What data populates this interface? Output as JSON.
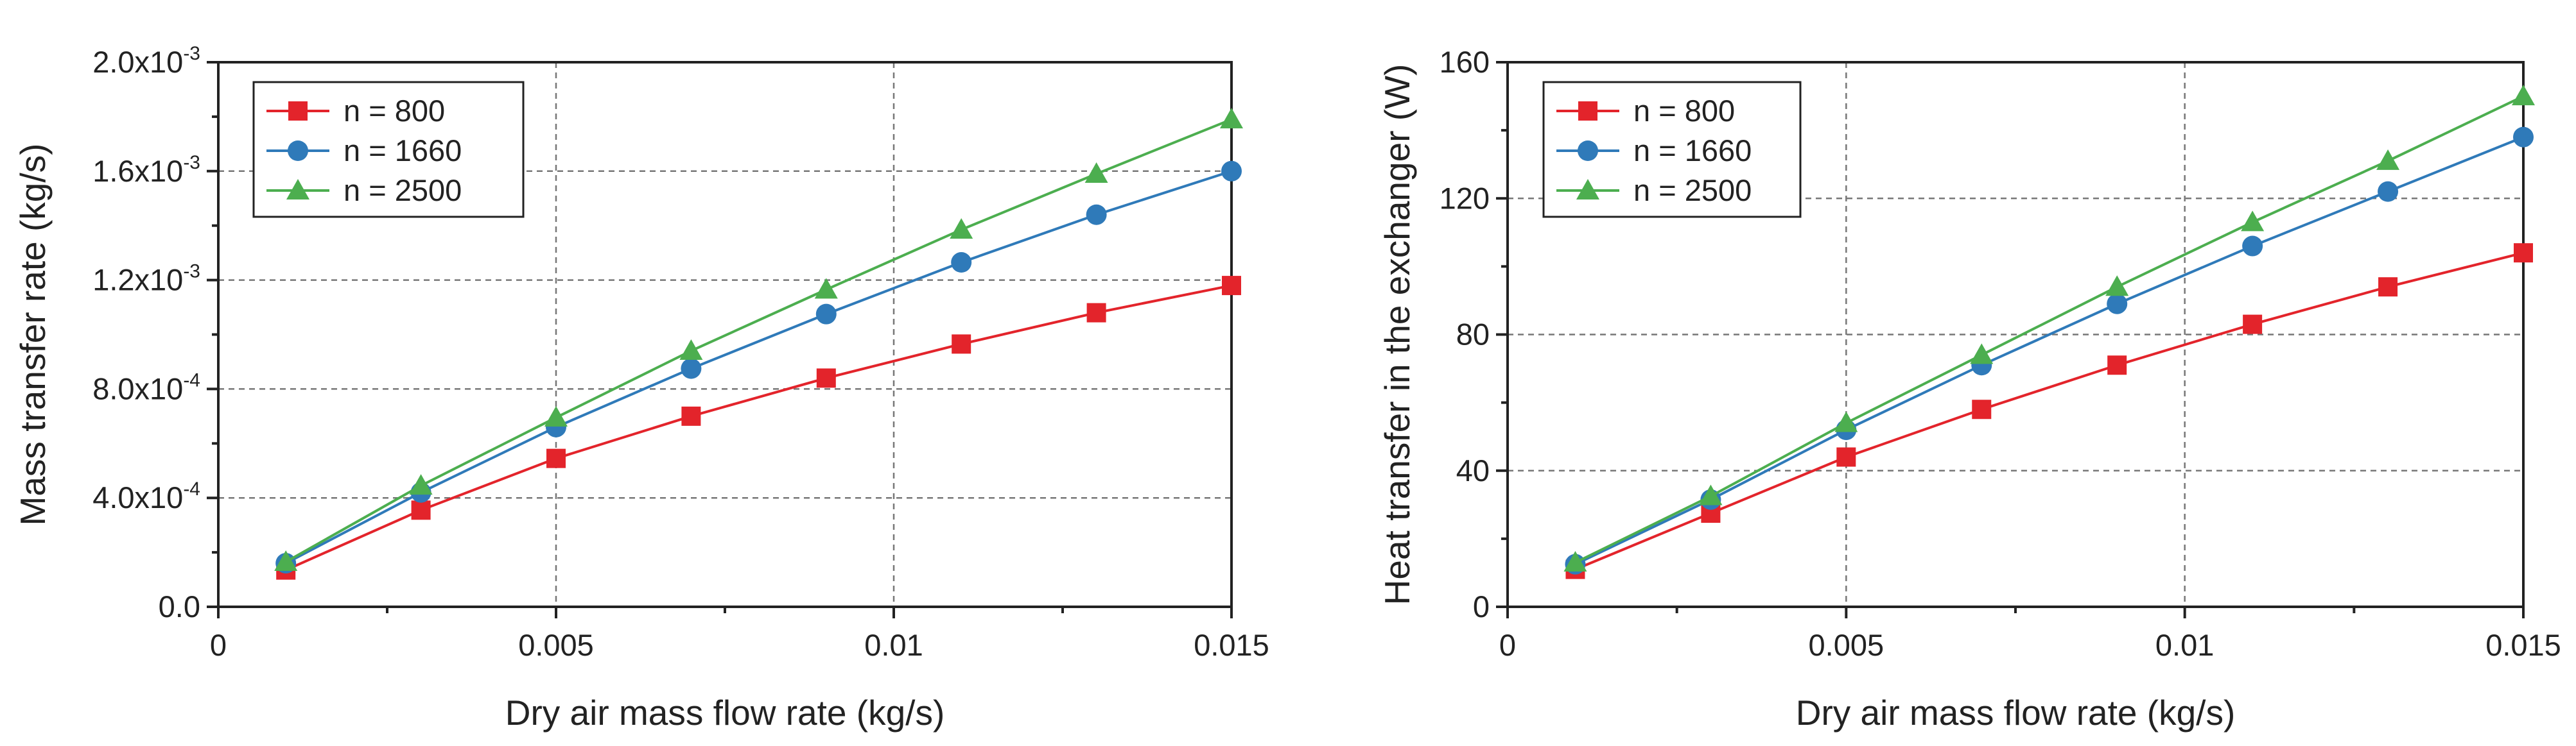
{
  "chart_data": [
    {
      "type": "line",
      "xlabel": "Dry air mass flow rate (kg/s)",
      "ylabel": "Mass transfer rate (kg/s)",
      "x": [
        0.001,
        0.003,
        0.005,
        0.007,
        0.009,
        0.011,
        0.013,
        0.015
      ],
      "xlim": [
        0,
        0.015
      ],
      "ylim": [
        0,
        0.002
      ],
      "xticks": [
        0,
        0.005,
        0.01,
        0.015
      ],
      "xtick_labels": [
        "0",
        "0.005",
        "0.01",
        "0.015"
      ],
      "yticks": [
        0,
        0.0004,
        0.0008,
        0.0012,
        0.0016,
        0.002
      ],
      "ytick_labels": [
        {
          "mant": "0.0",
          "exp": ""
        },
        {
          "mant": "4.0x10",
          "exp": "-4"
        },
        {
          "mant": "8.0x10",
          "exp": "-4"
        },
        {
          "mant": "1.2x10",
          "exp": "-3"
        },
        {
          "mant": "1.6x10",
          "exp": "-3"
        },
        {
          "mant": "2.0x10",
          "exp": "-3"
        }
      ],
      "grid": true,
      "legend_position": "top-left",
      "series": [
        {
          "name": "n = 800",
          "color": "#e3242b",
          "marker": "square",
          "values": [
            0.000135,
            0.000355,
            0.000545,
            0.0007,
            0.00084,
            0.000965,
            0.00108,
            0.00118
          ]
        },
        {
          "name": "n = 1660",
          "color": "#2f7ab9",
          "marker": "circle",
          "values": [
            0.00016,
            0.00042,
            0.00066,
            0.000875,
            0.001075,
            0.001265,
            0.00144,
            0.0016
          ]
        },
        {
          "name": "n = 2500",
          "color": "#4cae4f",
          "marker": "triangle",
          "values": [
            0.000165,
            0.000445,
            0.000695,
            0.00094,
            0.001165,
            0.001385,
            0.00159,
            0.00179
          ]
        }
      ]
    },
    {
      "type": "line",
      "xlabel": "Dry air mass flow rate (kg/s)",
      "ylabel": "Heat transfer in the exchanger (W)",
      "x": [
        0.001,
        0.003,
        0.005,
        0.007,
        0.009,
        0.011,
        0.013,
        0.015
      ],
      "xlim": [
        0,
        0.015
      ],
      "ylim": [
        0,
        160
      ],
      "xticks": [
        0,
        0.005,
        0.01,
        0.015
      ],
      "xtick_labels": [
        "0",
        "0.005",
        "0.01",
        "0.015"
      ],
      "yticks": [
        0,
        40,
        80,
        120,
        160
      ],
      "ytick_labels": [
        {
          "mant": "0",
          "exp": ""
        },
        {
          "mant": "40",
          "exp": ""
        },
        {
          "mant": "80",
          "exp": ""
        },
        {
          "mant": "120",
          "exp": ""
        },
        {
          "mant": "160",
          "exp": ""
        }
      ],
      "grid": true,
      "legend_position": "top-left",
      "series": [
        {
          "name": "n = 800",
          "color": "#e3242b",
          "marker": "square",
          "values": [
            11,
            27.5,
            44,
            58,
            71,
            83,
            94,
            104
          ]
        },
        {
          "name": "n = 1660",
          "color": "#2f7ab9",
          "marker": "circle",
          "values": [
            12.5,
            31.5,
            52,
            71,
            89,
            106,
            122,
            138
          ]
        },
        {
          "name": "n = 2500",
          "color": "#4cae4f",
          "marker": "triangle",
          "values": [
            13,
            32.5,
            54,
            74,
            94,
            113,
            131,
            150
          ]
        }
      ]
    }
  ]
}
